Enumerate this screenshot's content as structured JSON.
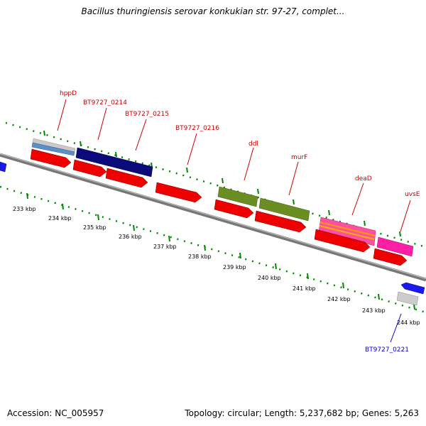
{
  "title": "Bacillus thuringiensis serovar konkukian str. 97-27, complet...",
  "footer": {
    "accession": "Accession: NC_005957",
    "topology": "Topology: circular; Length: 5,237,682 bp; Genes: 5,263"
  },
  "colors": {
    "label_forward": "#cc0000",
    "label_reverse": "#0000cc",
    "backbone": "#888888",
    "ticks": "#008800"
  },
  "kbp_ticks": [
    "233 kbp",
    "234 kbp",
    "235 kbp",
    "236 kbp",
    "237 kbp",
    "238 kbp",
    "239 kbp",
    "240 kbp",
    "241 kbp",
    "242 kbp",
    "243 kbp",
    "244 kbp"
  ],
  "gene_labels": [
    {
      "text": "hppD",
      "strand": "forward"
    },
    {
      "text": "BT9727_0214",
      "strand": "forward"
    },
    {
      "text": "BT9727_0215",
      "strand": "forward"
    },
    {
      "text": "BT9727_0216",
      "strand": "forward"
    },
    {
      "text": "ddl",
      "strand": "forward"
    },
    {
      "text": "murF",
      "strand": "forward"
    },
    {
      "text": "deaD",
      "strand": "forward"
    },
    {
      "text": "uvsE",
      "strand": "forward"
    },
    {
      "text": "BT9727_0221",
      "strand": "reverse"
    }
  ]
}
